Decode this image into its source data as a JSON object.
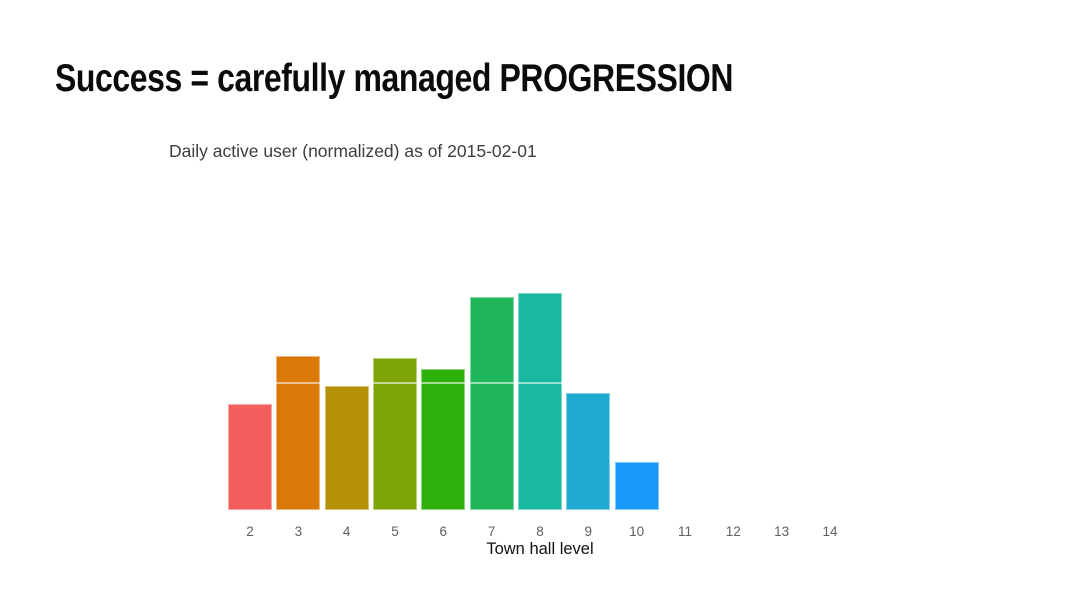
{
  "slide": {
    "title": "Success = carefully managed PROGRESSION",
    "background_color": "#ffffff"
  },
  "chart": {
    "title": "Daily active user (normalized) as of 2015-02-01",
    "xlabel": "Town hall level"
  },
  "chart_data": {
    "type": "bar",
    "title": "Daily active user (normalized) as of 2015-02-01",
    "xlabel": "Town hall level",
    "ylabel": "",
    "categories": [
      2,
      3,
      4,
      5,
      6,
      7,
      8,
      9,
      10,
      11,
      12,
      13,
      14
    ],
    "values": [
      0.49,
      0.71,
      0.57,
      0.7,
      0.65,
      0.98,
      1.0,
      0.54,
      0.22,
      null,
      null,
      null,
      null
    ],
    "bar_colors": [
      "#F25E5B",
      "#D97907",
      "#B39007",
      "#7DA508",
      "#2EB00B",
      "#1FB55B",
      "#19B8A0",
      "#21AACF",
      "#1899F7"
    ],
    "ylim": [
      0,
      1.05
    ],
    "legend": "none",
    "grid": "single faint white horizontal gridline drawn over bars",
    "gridline_value": 0.59,
    "tick_label_color": "#606060",
    "axis_label_color": "#111111"
  }
}
